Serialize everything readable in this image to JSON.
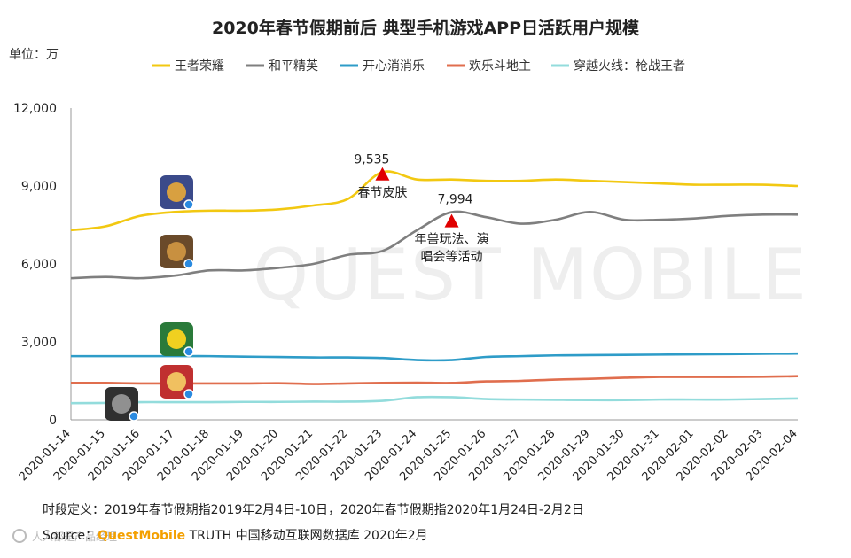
{
  "chart_data": {
    "type": "line",
    "title": "2020年春节假期前后 典型手机游戏APP日活跃用户规模",
    "unit_label": "单位：万",
    "x": [
      "2020-01-14",
      "2020-01-15",
      "2020-01-16",
      "2020-01-17",
      "2020-01-18",
      "2020-01-19",
      "2020-01-20",
      "2020-01-21",
      "2020-01-22",
      "2020-01-23",
      "2020-01-24",
      "2020-01-25",
      "2020-01-26",
      "2020-01-27",
      "2020-01-28",
      "2020-01-29",
      "2020-01-30",
      "2020-01-31",
      "2020-02-01",
      "2020-02-02",
      "2020-02-03",
      "2020-02-04"
    ],
    "ylim": [
      0,
      12000
    ],
    "yticks": [
      0,
      3000,
      6000,
      9000,
      12000
    ],
    "ytick_labels": [
      "0",
      "3,000",
      "6,000",
      "9,000",
      "12,000"
    ],
    "grid": false,
    "legend_position": "top",
    "series": [
      {
        "name": "王者荣耀",
        "color": "#F2C811",
        "values": [
          7300,
          7450,
          7850,
          8000,
          8050,
          8050,
          8100,
          8250,
          8500,
          9535,
          9250,
          9250,
          9200,
          9200,
          9250,
          9200,
          9150,
          9100,
          9050,
          9050,
          9050,
          9000
        ]
      },
      {
        "name": "和平精英",
        "color": "#7F7F7F",
        "values": [
          5450,
          5500,
          5450,
          5550,
          5750,
          5750,
          5850,
          6000,
          6350,
          6500,
          7300,
          7994,
          7800,
          7550,
          7700,
          8000,
          7700,
          7700,
          7750,
          7850,
          7900,
          7900
        ]
      },
      {
        "name": "开心消消乐",
        "color": "#2E9CC8",
        "values": [
          2450,
          2450,
          2450,
          2450,
          2450,
          2430,
          2420,
          2400,
          2400,
          2380,
          2300,
          2300,
          2420,
          2450,
          2480,
          2490,
          2500,
          2510,
          2520,
          2530,
          2540,
          2550
        ]
      },
      {
        "name": "欢乐斗地主",
        "color": "#E06E4E",
        "values": [
          1420,
          1420,
          1400,
          1400,
          1400,
          1400,
          1410,
          1380,
          1400,
          1420,
          1430,
          1420,
          1480,
          1500,
          1550,
          1580,
          1620,
          1650,
          1650,
          1650,
          1660,
          1680
        ]
      },
      {
        "name": "穿越火线：枪战王者",
        "color": "#93DCDC",
        "values": [
          640,
          650,
          680,
          680,
          680,
          690,
          690,
          700,
          700,
          730,
          870,
          870,
          800,
          780,
          770,
          760,
          760,
          780,
          780,
          780,
          800,
          820
        ]
      }
    ],
    "annotations": [
      {
        "label": "9,535",
        "series": 0,
        "index": 9
      },
      {
        "label": "7,994",
        "series": 1,
        "index": 11
      }
    ],
    "events": [
      {
        "lines": [
          "春节皮肤"
        ],
        "index": 9,
        "value": 9450
      },
      {
        "lines": [
          "年兽玩法、演",
          "唱会等活动"
        ],
        "index": 11,
        "value": 7650
      }
    ],
    "marker_color": "#E00000",
    "app_icons": [
      {
        "name": "honor-of-kings-icon",
        "series": 0
      },
      {
        "name": "game-for-peace-icon",
        "series": 1
      },
      {
        "name": "happy-elimination-icon",
        "series": 2
      },
      {
        "name": "happy-landlord-icon",
        "series": 3
      },
      {
        "name": "crossfire-icon",
        "series": 4
      }
    ]
  },
  "watermark": "QUEST MOBILE",
  "footnote": {
    "period": "时段定义：2019年春节假期指2019年2月4日-10日，2020年春节假期指2020年1月24日-2月2日",
    "source_label": "Source：",
    "source_brand": "QuestMobile",
    "source_rest": " TRUTH 中国移动互联网数据库 2020年2月"
  },
  "corner_logo": "人人都是产品经理"
}
